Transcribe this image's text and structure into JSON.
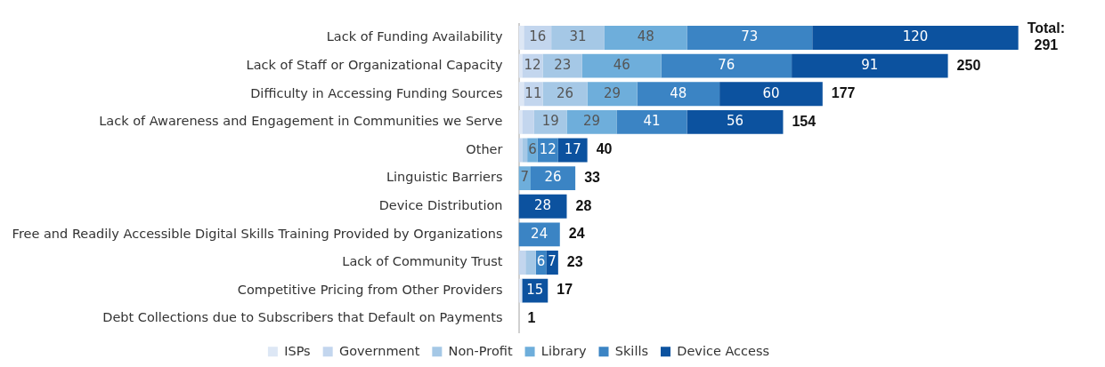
{
  "chart_data": {
    "type": "bar",
    "orientation": "horizontal",
    "stacked": true,
    "tick_labels": "y",
    "grid": false,
    "legend": "bottom",
    "categories": [
      "Lack of Funding Availability",
      "Lack of Staff or Organizational Capacity",
      "Difficulty in Accessing Funding Sources",
      "Lack of Awareness and Engagement in Communities we Serve",
      "Other",
      "Linguistic Barriers",
      "Device Distribution",
      "Free and Readily Accessible Digital Skills Training Provided by Organizations",
      "Lack of Community Trust",
      "Competitive Pricing from Other Providers",
      "Debt Collections due to Subscribers that Default on Payments"
    ],
    "series": [
      {
        "name": "ISPs",
        "color": "#dde7f5",
        "values": [
          3,
          2,
          3,
          2,
          null,
          null,
          null,
          null,
          null,
          2,
          null
        ],
        "value_labels": [
          null,
          null,
          null,
          null,
          null,
          null,
          null,
          null,
          null,
          null,
          null
        ]
      },
      {
        "name": "Government",
        "color": "#c3d6ee",
        "values": [
          16,
          12,
          11,
          7,
          2,
          null,
          null,
          null,
          4,
          null,
          null
        ],
        "value_labels": [
          "16",
          "12",
          "11",
          null,
          null,
          null,
          null,
          null,
          null,
          null,
          null
        ]
      },
      {
        "name": "Non-Profit",
        "color": "#a5c8e6",
        "values": [
          31,
          23,
          26,
          19,
          3,
          null,
          null,
          null,
          6,
          null,
          null
        ],
        "value_labels": [
          "31",
          "23",
          "26",
          "19",
          null,
          null,
          null,
          null,
          null,
          null,
          null
        ]
      },
      {
        "name": "Library",
        "color": "#6eaedb",
        "values": [
          48,
          46,
          29,
          29,
          6,
          7,
          null,
          null,
          null,
          null,
          null
        ],
        "value_labels": [
          "48",
          "46",
          "29",
          "29",
          "6",
          "7",
          null,
          null,
          null,
          null,
          null
        ]
      },
      {
        "name": "Skills",
        "color": "#3b84c4",
        "values": [
          73,
          76,
          48,
          41,
          12,
          26,
          null,
          24,
          6,
          null,
          null
        ],
        "value_labels": [
          "73",
          "76",
          "48",
          "41",
          "12",
          "26",
          null,
          "24",
          "6",
          null,
          null
        ]
      },
      {
        "name": "Device Access",
        "color": "#0c529f",
        "values": [
          120,
          91,
          60,
          56,
          17,
          null,
          28,
          null,
          7,
          15,
          null
        ],
        "value_labels": [
          "120",
          "91",
          "60",
          "56",
          "17",
          null,
          "28",
          null,
          "7",
          "15",
          null
        ]
      }
    ],
    "totals": [
      "Total: 291",
      "250",
      "177",
      "154",
      "40",
      "33",
      "28",
      "24",
      "23",
      "17",
      "1"
    ]
  }
}
